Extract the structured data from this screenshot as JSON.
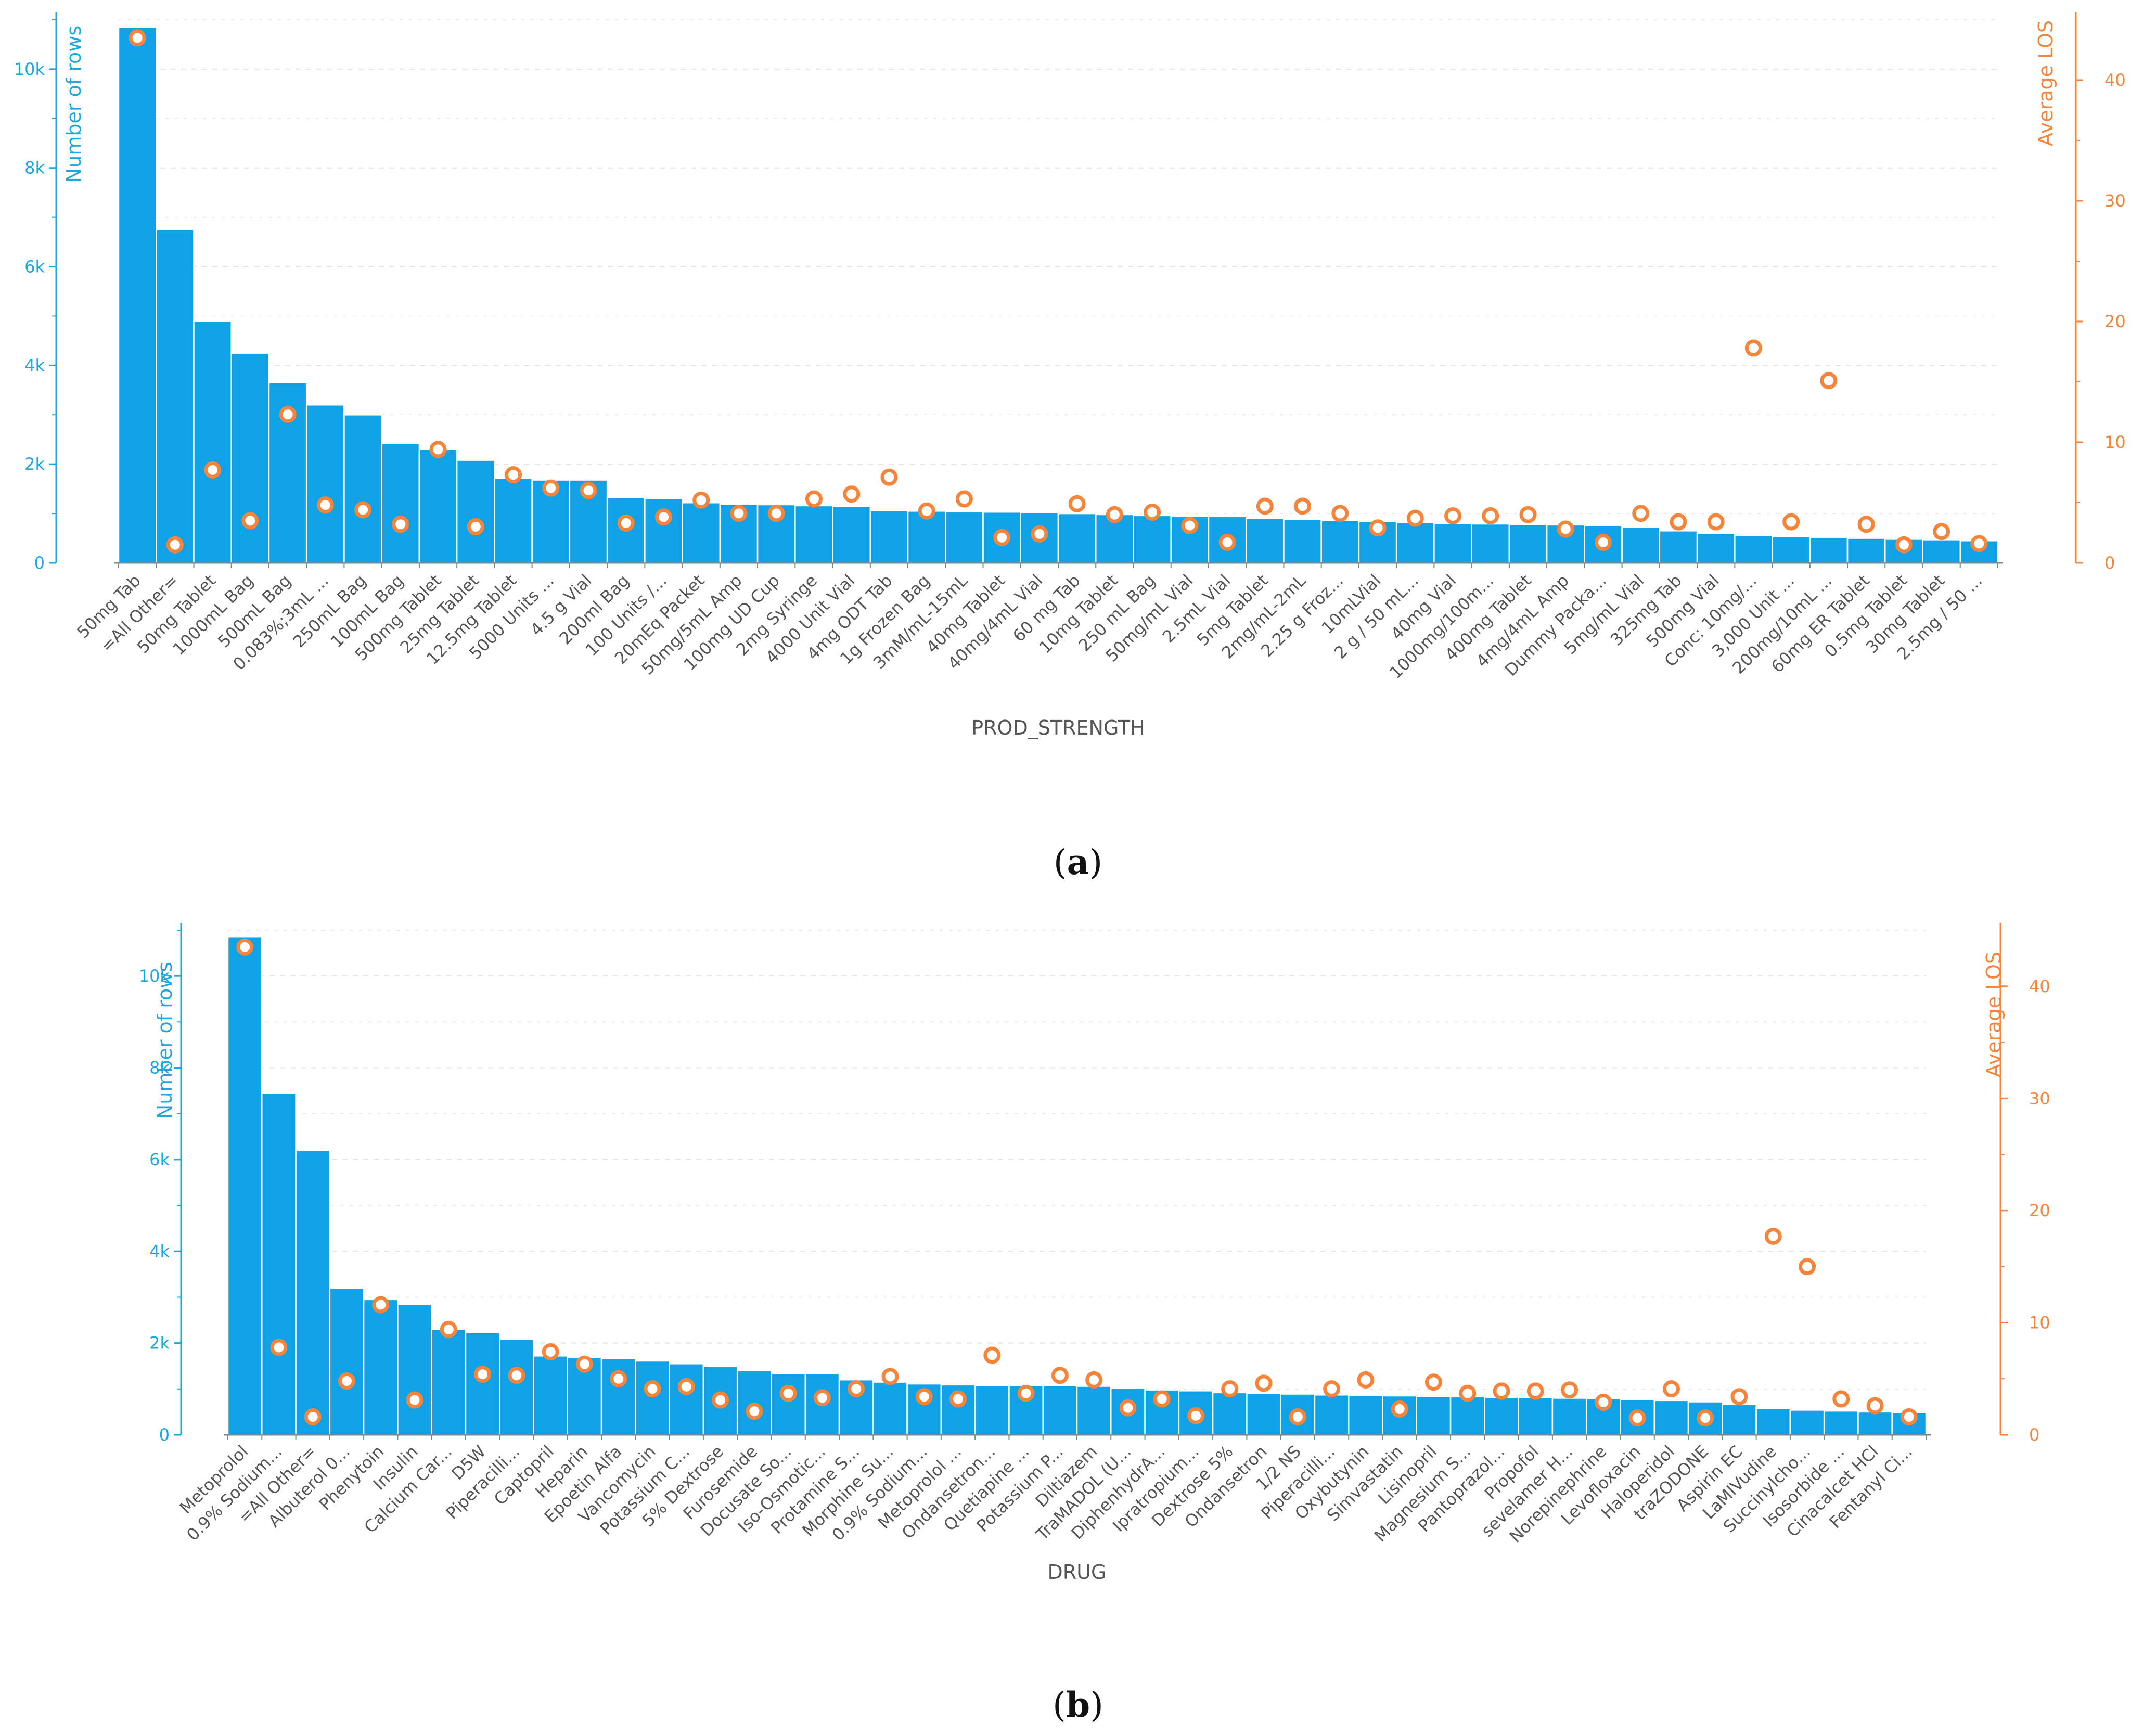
{
  "colors": {
    "bar": "#0fa2e6",
    "bar_stroke": "#ffffff",
    "left_axis": "#1ca7e0",
    "right_axis": "#f6853b",
    "marker": "#f6853b",
    "grid": "#e4e4e4",
    "label": "#555555"
  },
  "chart_data": [
    {
      "type": "bar",
      "id": "a",
      "caption_pre": "(",
      "caption_letter": "a",
      "caption_post": ")",
      "xlabel": "PROD_STRENGTH",
      "ylabel": "Number of rows",
      "y2label": "Average LOS",
      "ylim": [
        0,
        11000
      ],
      "y2lim": [
        0,
        45
      ],
      "yticks": [
        0,
        2000,
        4000,
        6000,
        8000,
        10000
      ],
      "yticklabels": [
        "0",
        "2k",
        "4k",
        "6k",
        "8k",
        "10k"
      ],
      "y2ticks": [
        0,
        10,
        20,
        30,
        40
      ],
      "y2ticklabels": [
        "0",
        "10",
        "20",
        "30",
        "40"
      ],
      "categories": [
        "50mg Tab",
        "=All Other=",
        "50mg Tablet",
        "1000mL Bag",
        "500mL Bag",
        "0.083%;3mL ...",
        "250mL Bag",
        "100mL Bag",
        "500mg Tablet",
        "25mg Tablet",
        "12.5mg Tablet",
        "5000 Units ...",
        "4.5 g Vial",
        "200ml Bag",
        "100 Units /...",
        "20mEq Packet",
        "50mg/5mL Amp",
        "100mg UD Cup",
        "2mg Syringe",
        "4000 Unit Vial",
        "4mg ODT Tab",
        "1g Frozen Bag",
        "3mM/mL-15mL",
        "40mg Tablet",
        "40mg/4mL Vial",
        "60 mg Tab",
        "10mg Tablet",
        "250 mL Bag",
        "50mg/mL Vial",
        "2.5mL Vial",
        "5mg Tablet",
        "2mg/mL-2mL",
        "2.25 g Froz...",
        "10mLVial",
        "2 g / 50 mL...",
        "40mg Vial",
        "1000mg/100m...",
        "400mg Tablet",
        "4mg/4mL Amp",
        "Dummy Packa...",
        "5mg/mL Vial",
        "325mg Tab",
        "500mg Vial",
        "Conc: 10mg/...",
        "3,000 Unit ...",
        "200mg/10mL ...",
        "60mg ER Tablet",
        "0.5mg Tablet",
        "30mg Tablet",
        "2.5mg / 50 ..."
      ],
      "series": [
        {
          "name": "Number of rows",
          "type": "bar",
          "axis": "left",
          "values": [
            10850,
            6750,
            4900,
            4250,
            3650,
            3200,
            3000,
            2420,
            2300,
            2080,
            1720,
            1680,
            1680,
            1330,
            1300,
            1220,
            1190,
            1180,
            1160,
            1150,
            1060,
            1050,
            1040,
            1030,
            1020,
            1000,
            980,
            960,
            950,
            940,
            900,
            880,
            860,
            840,
            820,
            800,
            790,
            780,
            770,
            760,
            730,
            650,
            600,
            560,
            540,
            520,
            500,
            480,
            470,
            450
          ]
        },
        {
          "name": "Average LOS",
          "type": "scatter",
          "axis": "right",
          "values": [
            43.5,
            1.5,
            7.7,
            3.5,
            12.3,
            4.8,
            4.4,
            3.2,
            9.4,
            3.0,
            7.3,
            6.2,
            6.0,
            3.3,
            3.8,
            5.2,
            4.1,
            4.1,
            5.3,
            5.7,
            7.1,
            4.3,
            5.3,
            2.1,
            2.4,
            4.9,
            4.0,
            4.2,
            3.1,
            1.7,
            4.7,
            4.7,
            4.1,
            2.9,
            3.7,
            3.9,
            3.9,
            4.0,
            2.8,
            1.7,
            4.1,
            3.4,
            3.4,
            17.8,
            3.4,
            15.1,
            3.2,
            1.5,
            2.6,
            1.6
          ]
        }
      ]
    },
    {
      "type": "bar",
      "id": "b",
      "caption_pre": "(",
      "caption_letter": "b",
      "caption_post": ")",
      "xlabel": "DRUG",
      "ylabel": "Number of rows",
      "y2label": "Average LOS",
      "ylim": [
        0,
        11000
      ],
      "y2lim": [
        0,
        45
      ],
      "yticks": [
        0,
        2000,
        4000,
        6000,
        8000,
        10000
      ],
      "yticklabels": [
        "0",
        "2k",
        "4k",
        "6k",
        "8k",
        "10k"
      ],
      "y2ticks": [
        0,
        10,
        20,
        30,
        40
      ],
      "y2ticklabels": [
        "0",
        "10",
        "20",
        "30",
        "40"
      ],
      "categories": [
        "Metoprolol",
        "0.9% Sodium...",
        "=All Other=",
        "Albuterol 0...",
        "Phenytoin",
        "Insulin",
        "Calcium Car...",
        "D5W",
        "Piperacilli...",
        "Captopril",
        "Heparin",
        "Epoetin Alfa",
        "Vancomycin",
        "Potassium C...",
        "5% Dextrose",
        "Furosemide",
        "Docusate So...",
        "Iso-Osmotic...",
        "Protamine S...",
        "Morphine Su...",
        "0.9% Sodium...",
        "Metoprolol ...",
        "Ondansetron...",
        "Quetiapine ...",
        "Potassium P...",
        "Diltiazem",
        "TraMADOL (U...",
        "DiphenhydrA...",
        "Ipratropium...",
        "Dextrose 5%",
        "Ondansetron",
        "1/2 NS",
        "Piperacilli...",
        "Oxybutynin",
        "Simvastatin",
        "Lisinopril",
        "Magnesium S...",
        "Pantoprazol...",
        "Propofol",
        "sevelamer H...",
        "Norepinephrine",
        "Levofloxacin",
        "Haloperidol",
        "traZODONE",
        "Aspirin EC",
        "LaMIVudine",
        "Succinylcho...",
        "Isosorbide ...",
        "Cinacalcet HCl",
        "Fentanyl Ci..."
      ],
      "series": [
        {
          "name": "Number of rows",
          "type": "bar",
          "axis": "left",
          "values": [
            10850,
            7450,
            6200,
            3200,
            2950,
            2850,
            2300,
            2230,
            2080,
            1720,
            1690,
            1660,
            1610,
            1550,
            1500,
            1400,
            1340,
            1330,
            1200,
            1150,
            1110,
            1090,
            1080,
            1080,
            1070,
            1060,
            1020,
            980,
            960,
            920,
            900,
            890,
            870,
            860,
            850,
            840,
            830,
            820,
            810,
            800,
            790,
            770,
            750,
            720,
            660,
            570,
            540,
            520,
            500,
            480
          ]
        },
        {
          "name": "Average LOS",
          "type": "scatter",
          "axis": "right",
          "values": [
            43.5,
            7.8,
            1.6,
            4.8,
            11.6,
            3.1,
            9.4,
            5.4,
            5.3,
            7.4,
            6.3,
            5.0,
            4.1,
            4.3,
            3.1,
            2.1,
            3.7,
            3.3,
            4.1,
            5.2,
            3.4,
            3.2,
            7.1,
            3.7,
            5.3,
            4.9,
            2.4,
            3.2,
            1.7,
            4.1,
            4.6,
            1.6,
            4.1,
            4.9,
            2.3,
            4.7,
            3.7,
            3.9,
            3.9,
            4.0,
            2.9,
            1.5,
            4.1,
            1.5,
            3.4,
            17.7,
            15.0,
            3.2,
            2.6,
            1.6
          ]
        }
      ]
    }
  ]
}
